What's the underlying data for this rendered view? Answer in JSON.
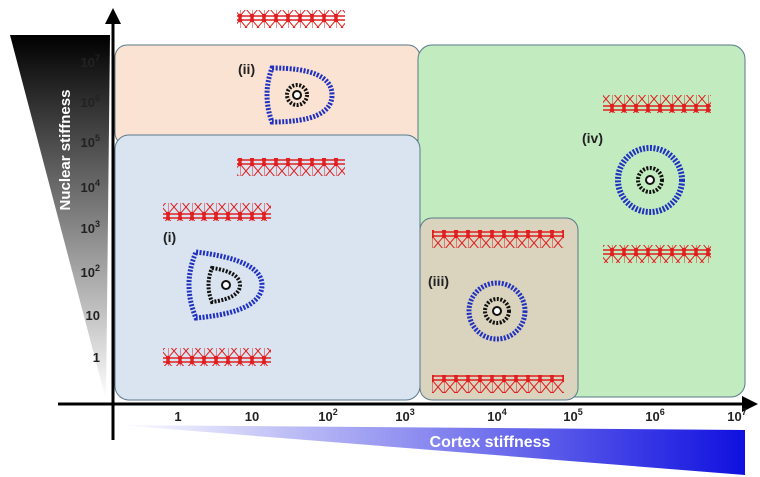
{
  "axes": {
    "y_label": "Nuclear stiffness",
    "x_label": "Cortex stiffness",
    "y_ticks": [
      {
        "base": "10",
        "exp": "7"
      },
      {
        "base": "10",
        "exp": "6"
      },
      {
        "base": "10",
        "exp": "5"
      },
      {
        "base": "10",
        "exp": "4"
      },
      {
        "base": "10",
        "exp": "3"
      },
      {
        "base": "10",
        "exp": "2"
      },
      {
        "base": "10"
      },
      {
        "base": "1"
      }
    ],
    "x_ticks": [
      {
        "base": "1"
      },
      {
        "base": "10"
      },
      {
        "base": "10",
        "exp": "2"
      },
      {
        "base": "10",
        "exp": "3"
      },
      {
        "base": "10",
        "exp": "4"
      },
      {
        "base": "10",
        "exp": "5"
      },
      {
        "base": "10",
        "exp": "6"
      },
      {
        "base": "10",
        "exp": "7"
      }
    ]
  },
  "regions": [
    {
      "label": "(i)"
    },
    {
      "label": "(ii)"
    },
    {
      "label": "(iii)"
    },
    {
      "label": "(iv)"
    }
  ]
}
